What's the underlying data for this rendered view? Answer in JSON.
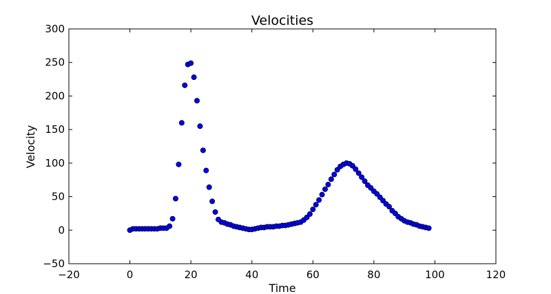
{
  "chart_data": {
    "type": "scatter",
    "title": "Velocities",
    "xlabel": "Time",
    "ylabel": "Velocity",
    "xlim": [
      -20,
      120
    ],
    "ylim": [
      -50,
      300
    ],
    "xticks": [
      -20,
      0,
      20,
      40,
      60,
      80,
      100,
      120
    ],
    "yticks": [
      -50,
      0,
      50,
      100,
      150,
      200,
      250,
      300
    ],
    "xtick_labels": [
      "−20",
      "0",
      "20",
      "40",
      "60",
      "80",
      "100",
      "120"
    ],
    "ytick_labels": [
      "−50",
      "0",
      "50",
      "100",
      "150",
      "200",
      "250",
      "300"
    ],
    "grid": false,
    "marker_color": "#0000ff",
    "marker_edge_color": "#000000",
    "series": [
      {
        "x": [
          0,
          1,
          2,
          3,
          4,
          5,
          6,
          7,
          8,
          9,
          10,
          11,
          12,
          13,
          14,
          15,
          16,
          17,
          18,
          19,
          20,
          21,
          22,
          23,
          24,
          25,
          26,
          27,
          28,
          29,
          30,
          31,
          32,
          33,
          34,
          35,
          36,
          37,
          38,
          39,
          40,
          41,
          42,
          43,
          44,
          45,
          46,
          47,
          48,
          49,
          50,
          51,
          52,
          53,
          54,
          55,
          56,
          57,
          58,
          59,
          60,
          61,
          62,
          63,
          64,
          65,
          66,
          67,
          68,
          69,
          70,
          71,
          72,
          73,
          74,
          75,
          76,
          77,
          78,
          79,
          80,
          81,
          82,
          83,
          84,
          85,
          86,
          87,
          88,
          89,
          90,
          91,
          92,
          93,
          94,
          95,
          96,
          97,
          98
        ],
        "y": [
          0,
          2,
          2,
          2,
          2,
          2,
          2,
          2,
          2,
          2,
          3,
          3,
          3,
          6,
          17,
          47,
          98,
          160,
          216,
          247,
          249,
          228,
          193,
          155,
          119,
          89,
          64,
          43,
          27,
          16,
          12,
          11,
          9,
          8,
          6,
          5,
          4,
          3,
          2,
          1,
          1,
          2,
          3,
          4,
          4,
          5,
          5,
          5,
          6,
          6,
          7,
          7,
          8,
          9,
          10,
          11,
          12,
          15,
          19,
          24,
          31,
          38,
          45,
          53,
          61,
          68,
          76,
          83,
          90,
          95,
          98,
          100,
          99,
          96,
          91,
          85,
          79,
          73,
          67,
          63,
          58,
          54,
          49,
          44,
          39,
          35,
          29,
          25,
          20,
          17,
          14,
          12,
          11,
          9,
          8,
          6,
          5,
          4,
          3
        ]
      }
    ]
  }
}
